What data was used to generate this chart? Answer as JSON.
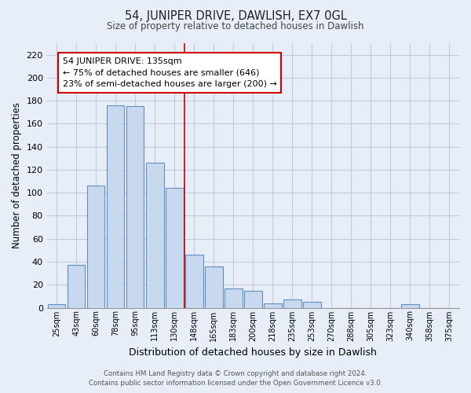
{
  "title": "54, JUNIPER DRIVE, DAWLISH, EX7 0GL",
  "subtitle": "Size of property relative to detached houses in Dawlish",
  "xlabel": "Distribution of detached houses by size in Dawlish",
  "ylabel": "Number of detached properties",
  "bar_labels": [
    "25sqm",
    "43sqm",
    "60sqm",
    "78sqm",
    "95sqm",
    "113sqm",
    "130sqm",
    "148sqm",
    "165sqm",
    "183sqm",
    "200sqm",
    "218sqm",
    "235sqm",
    "253sqm",
    "270sqm",
    "288sqm",
    "305sqm",
    "323sqm",
    "340sqm",
    "358sqm",
    "375sqm"
  ],
  "bar_values": [
    3,
    37,
    106,
    176,
    175,
    126,
    104,
    46,
    36,
    17,
    15,
    4,
    7,
    5,
    0,
    0,
    0,
    0,
    3,
    0,
    0
  ],
  "bar_facecolor": "#c8d8ee",
  "bar_edgecolor": "#6090c0",
  "vline_x": 6.5,
  "vline_color": "#cc0000",
  "ylim": [
    0,
    230
  ],
  "yticks": [
    0,
    20,
    40,
    60,
    80,
    100,
    120,
    140,
    160,
    180,
    200,
    220
  ],
  "annotation_title": "54 JUNIPER DRIVE: 135sqm",
  "annotation_line1": "← 75% of detached houses are smaller (646)",
  "annotation_line2": "23% of semi-detached houses are larger (200) →",
  "annotation_box_facecolor": "#ffffff",
  "annotation_box_edgecolor": "#cc0000",
  "footer_line1": "Contains HM Land Registry data © Crown copyright and database right 2024.",
  "footer_line2": "Contains public sector information licensed under the Open Government Licence v3.0.",
  "background_color": "#e8eef8",
  "grid_color": "#c0cce0"
}
